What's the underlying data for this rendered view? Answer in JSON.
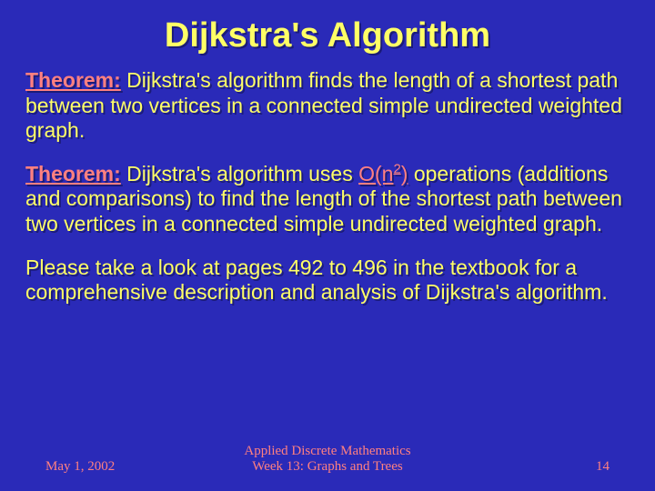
{
  "slide": {
    "background_color": "#2a2ab8",
    "title": {
      "text": "Dijkstra's Algorithm",
      "color": "#ffff66",
      "fontsize": 38
    },
    "body_color": "#ffff66",
    "theorem1": {
      "label": "Theorem:",
      "label_color": "#ff8080",
      "text": " Dijkstra's algorithm finds the length of a shortest path between two vertices in a connected simple undirected weighted graph."
    },
    "theorem2": {
      "label": "Theorem:",
      "label_color": "#ff8080",
      "pre_text": " Dijkstra's algorithm uses ",
      "bigO_pre": "O(n",
      "bigO_exp": "2",
      "bigO_post": ")",
      "bigO_color": "#ff8080",
      "post_text": " operations (additions and comparisons) to find the length of the shortest path between two vertices in a connected simple undirected weighted graph."
    },
    "note": {
      "text": "Please take a look at pages 492 to 496 in the textbook for a comprehensive description and analysis of Dijkstra's algorithm."
    },
    "footer": {
      "date": "May 1, 2002",
      "center_line1": "Applied Discrete Mathematics",
      "center_line2": "Week 13: Graphs and Trees",
      "page": "14",
      "color": "#ff8080"
    }
  }
}
